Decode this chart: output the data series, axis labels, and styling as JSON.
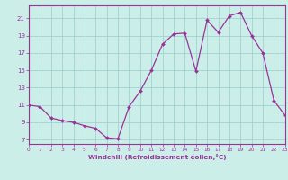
{
  "x": [
    0,
    1,
    2,
    3,
    4,
    5,
    6,
    7,
    8,
    9,
    10,
    11,
    12,
    13,
    14,
    15,
    16,
    17,
    18,
    19,
    20,
    21,
    22,
    23
  ],
  "y": [
    11.0,
    10.8,
    9.5,
    9.2,
    9.0,
    8.6,
    8.3,
    7.2,
    7.1,
    10.8,
    12.6,
    15.0,
    18.0,
    19.2,
    19.3,
    14.9,
    20.8,
    19.4,
    21.3,
    21.7,
    19.0,
    17.0,
    11.5,
    9.8
  ],
  "line_color": "#993399",
  "marker_color": "#993399",
  "bg_color": "#cceee8",
  "grid_color": "#99cccc",
  "xlabel": "Windchill (Refroidissement éolien,°C)",
  "xlim": [
    0,
    23
  ],
  "ylim": [
    6.5,
    22.5
  ],
  "yticks": [
    7,
    9,
    11,
    13,
    15,
    17,
    19,
    21
  ],
  "xticks": [
    0,
    1,
    2,
    3,
    4,
    5,
    6,
    7,
    8,
    9,
    10,
    11,
    12,
    13,
    14,
    15,
    16,
    17,
    18,
    19,
    20,
    21,
    22,
    23
  ],
  "tick_color": "#993399",
  "label_color": "#993399",
  "axis_color": "#993399",
  "spine_color": "#993399"
}
